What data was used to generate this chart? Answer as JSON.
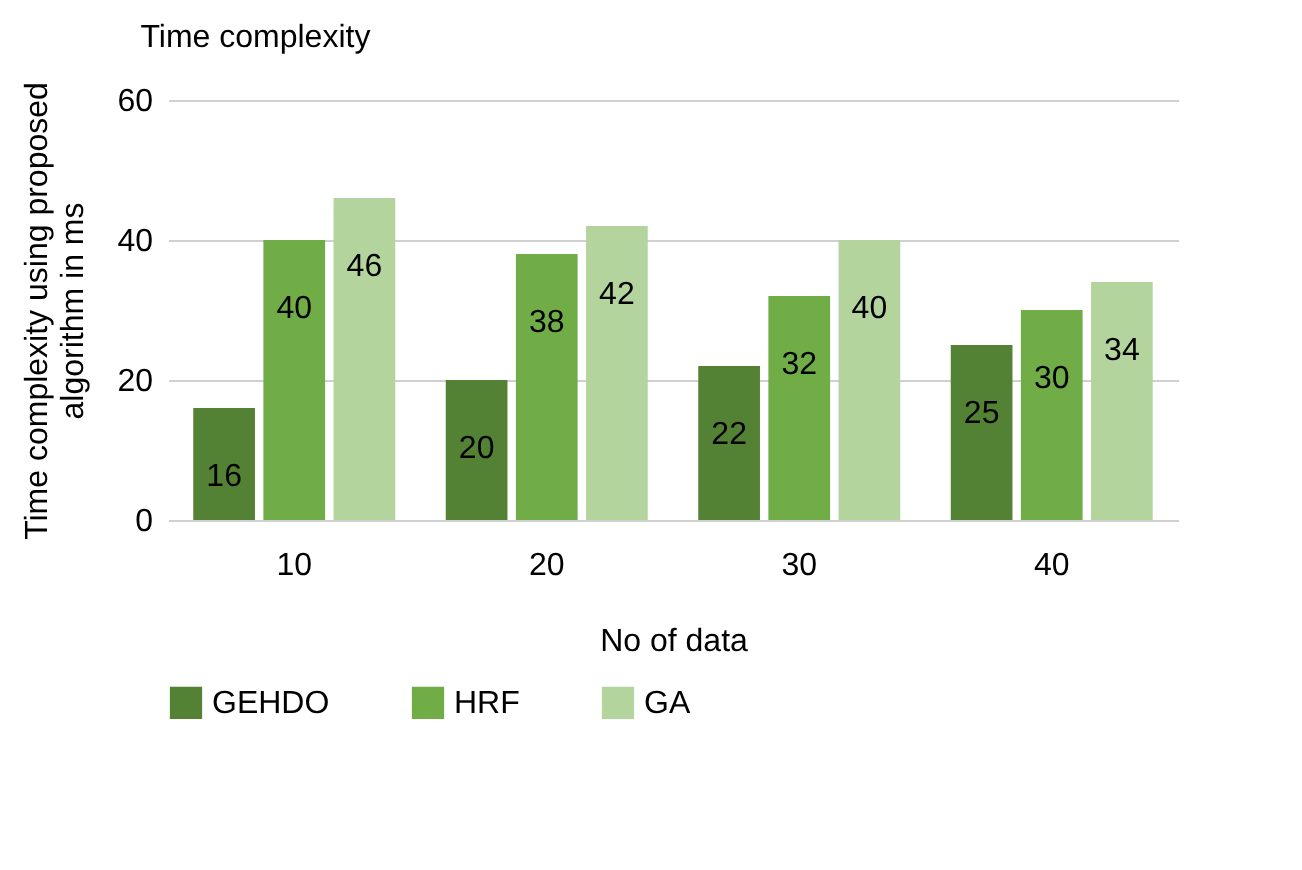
{
  "chart_data": {
    "type": "bar",
    "title": "Time complexity",
    "xlabel": "No of data",
    "ylabel": "Time complexity using proposed algorithm in ms",
    "categories": [
      "10",
      "20",
      "30",
      "40"
    ],
    "series": [
      {
        "name": "GEHDO",
        "color": "#548235",
        "values": [
          16,
          20,
          22,
          25
        ]
      },
      {
        "name": "HRF",
        "color": "#70ad47",
        "values": [
          40,
          38,
          32,
          30
        ]
      },
      {
        "name": "GA",
        "color": "#b4d49e",
        "values": [
          46,
          42,
          40,
          34
        ]
      }
    ],
    "ylim": [
      0,
      60
    ],
    "yticks": [
      0,
      20,
      40,
      60
    ],
    "grid": "y",
    "legend": "bottom",
    "data_labels": true
  }
}
